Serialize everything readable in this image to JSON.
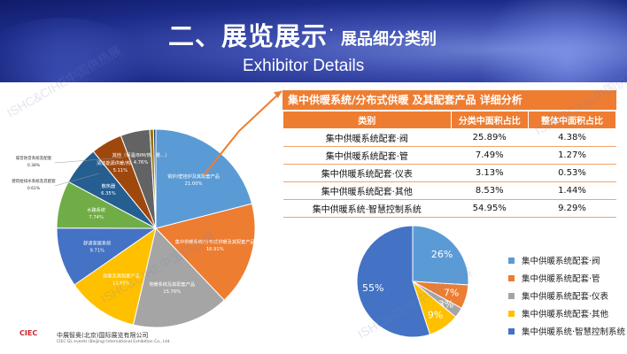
{
  "header": {
    "title_main": "二、展览展示",
    "title_dot": "·",
    "title_sub": "展品细分类别",
    "title_en": "Exhibitor Details"
  },
  "watermarks": [
    "ISHC&CIHE中国供热展",
    "ISHC&CIHE中国供热展",
    "ISHC&CIHE中国供热展",
    "ISHC&CIHE中国供热展"
  ],
  "footer": {
    "logo": "CIEC",
    "company": "中展智奥(北京)国际展览有限公司",
    "company_en": "CIEC GL events (Beijing) International Exhibition Co., Ltd."
  },
  "table": {
    "title": "集中供暖系统/分布式供暖 及其配套产品 详细分析",
    "headers": [
      "类别",
      "分类中面积占比",
      "整体中面积占比"
    ],
    "rows": [
      [
        "集中供暖系统配套·阀",
        "25.89%",
        "4.38%"
      ],
      [
        "集中供暖系统配套·管",
        "7.49%",
        "1.27%"
      ],
      [
        "集中供暖系统配套·仪表",
        "3.13%",
        "0.53%"
      ],
      [
        "集中供暖系统配套·其他",
        "8.53%",
        "1.44%"
      ],
      [
        "集中供暖系统·智慧控制系统",
        "54.95%",
        "9.29%"
      ]
    ]
  },
  "chart_data": [
    {
      "type": "pie",
      "title": "",
      "slices": [
        {
          "label": "锅炉/壁挂炉及其配套产品",
          "value": 21.0,
          "value_label": "21.00%",
          "color": "#5b9bd5"
        },
        {
          "label": "集中供暖系统/分布式供暖及其配套产品",
          "value": 16.91,
          "value_label": "16.91%",
          "color": "#ed7d31"
        },
        {
          "label": "地暖系统及其配套产品",
          "value": 15.76,
          "value_label": "15.76%",
          "color": "#a5a5a5"
        },
        {
          "label": "热泵及其配套产品",
          "value": 11.68,
          "value_label": "11.68%",
          "color": "#ffc000"
        },
        {
          "label": "舒适家居系统",
          "value": 9.71,
          "value_label": "9.71%",
          "color": "#4472c4"
        },
        {
          "label": "水路系统",
          "value": 7.74,
          "value_label": "7.74%",
          "color": "#70ad47"
        },
        {
          "label": "散热器",
          "value": 6.35,
          "value_label": "6.35%",
          "color": "#255e91"
        },
        {
          "label": "清洁能源供暖/热水产品",
          "value": 5.11,
          "value_label": "5.11%",
          "color": "#9e480e"
        },
        {
          "label": "其他（保温/BIM/热计量…）",
          "value": 4.76,
          "value_label": "4.76%",
          "color": "#636363"
        },
        {
          "label": "建筑给排水系统及其配套",
          "value": 0.61,
          "value_label": "0.61%",
          "color": "#997300"
        },
        {
          "label": "噪音防音系统及配套",
          "value": 0.38,
          "value_label": "0.38%",
          "color": "#264478"
        }
      ]
    },
    {
      "type": "pie",
      "title": "",
      "slices": [
        {
          "label": "集中供暖系统配套·阀",
          "value": 26,
          "value_label": "26%",
          "color": "#5b9bd5"
        },
        {
          "label": "集中供暖系统配套·管",
          "value": 7,
          "value_label": "7%",
          "color": "#ed7d31"
        },
        {
          "label": "集中供暖系统配套·仪表",
          "value": 3,
          "value_label": "3%",
          "color": "#a5a5a5"
        },
        {
          "label": "集中供暖系统配套·其他",
          "value": 9,
          "value_label": "9%",
          "color": "#ffc000"
        },
        {
          "label": "集中供暖系统·智慧控制系统",
          "value": 55,
          "value_label": "55%",
          "color": "#4472c4"
        }
      ],
      "legend": "right"
    }
  ]
}
